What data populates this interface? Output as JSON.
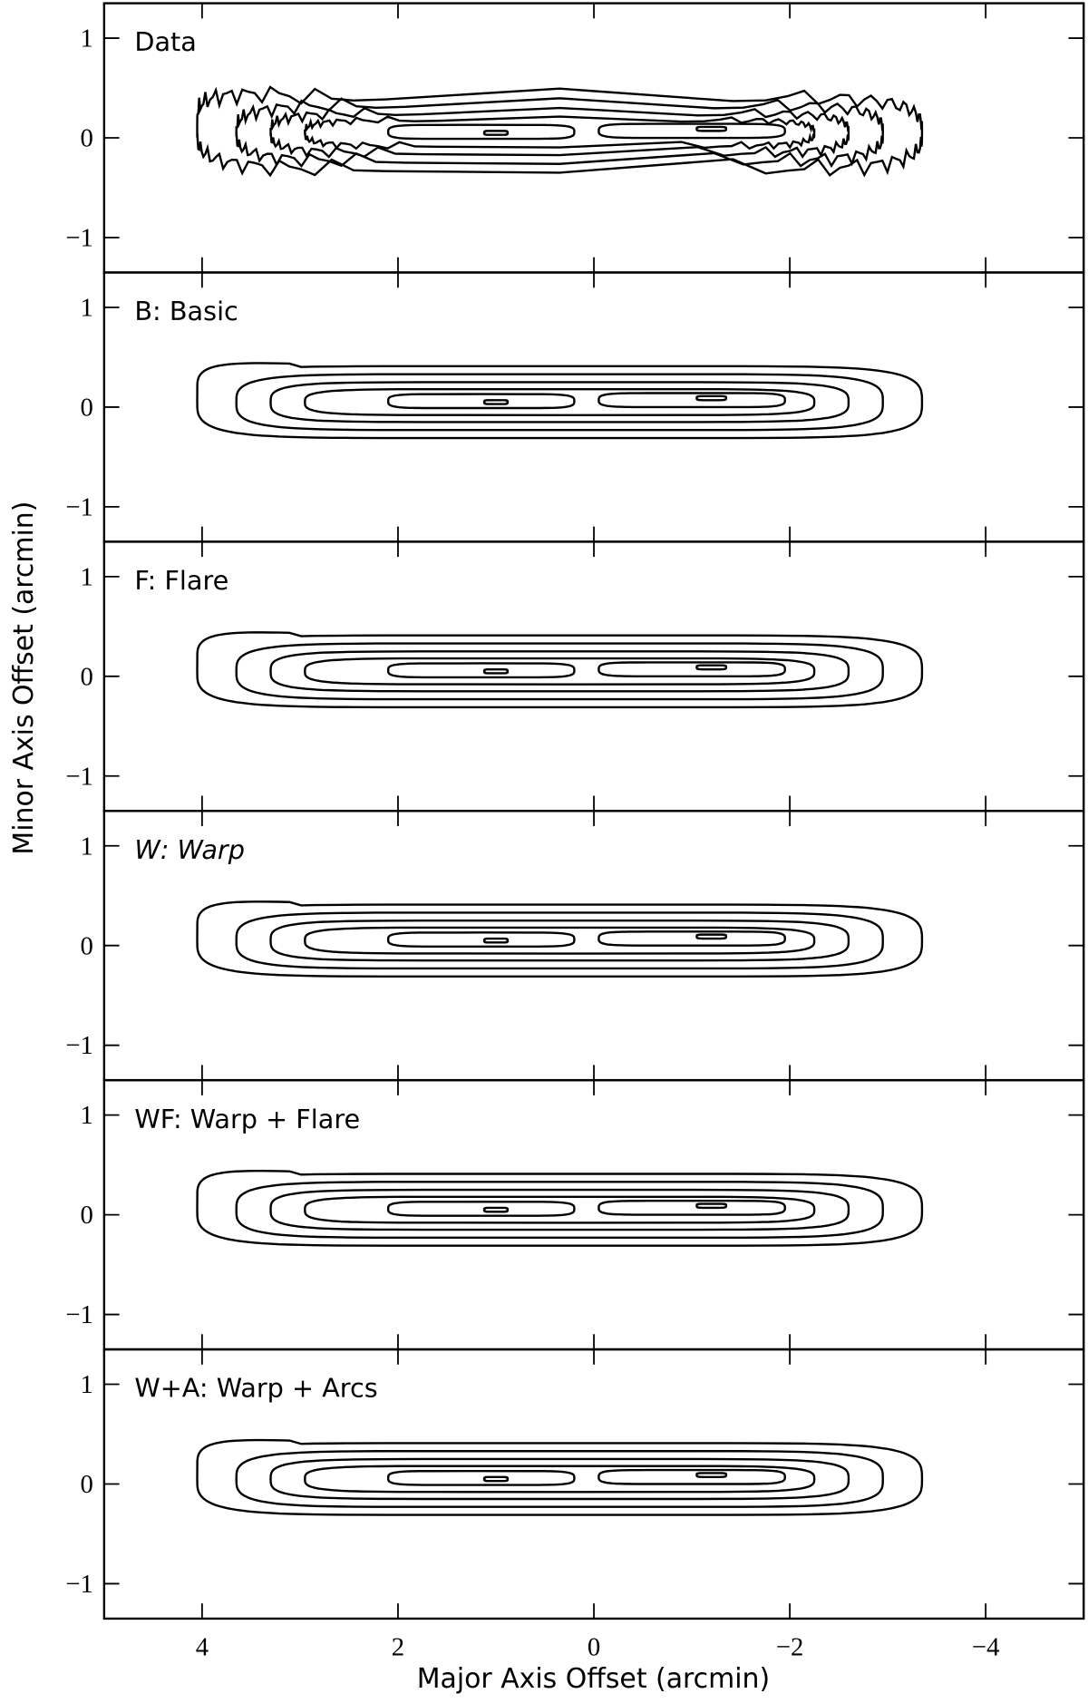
{
  "chart_data": {
    "type": "contour",
    "xlabel": "Major Axis Offset (arcmin)",
    "ylabel": "Minor Axis Offset (arcmin)",
    "xlim": [
      5,
      -5
    ],
    "xticks": [
      4,
      2,
      0,
      {
        "value": -2,
        "label": "−2"
      },
      {
        "value": -4,
        "label": "−4"
      }
    ],
    "ylim": [
      -1.35,
      1.35
    ],
    "yticks": [
      {
        "value": -1,
        "label": "−1"
      },
      0,
      1
    ],
    "panels": [
      {
        "title": "Data"
      },
      {
        "title": "B: Basic"
      },
      {
        "title": "F: Flare"
      },
      {
        "title": "W: Warp",
        "title_style": "italic"
      },
      {
        "title": "WF: Warp + Flare"
      },
      {
        "title": "W+A: Warp + Arcs"
      }
    ]
  }
}
